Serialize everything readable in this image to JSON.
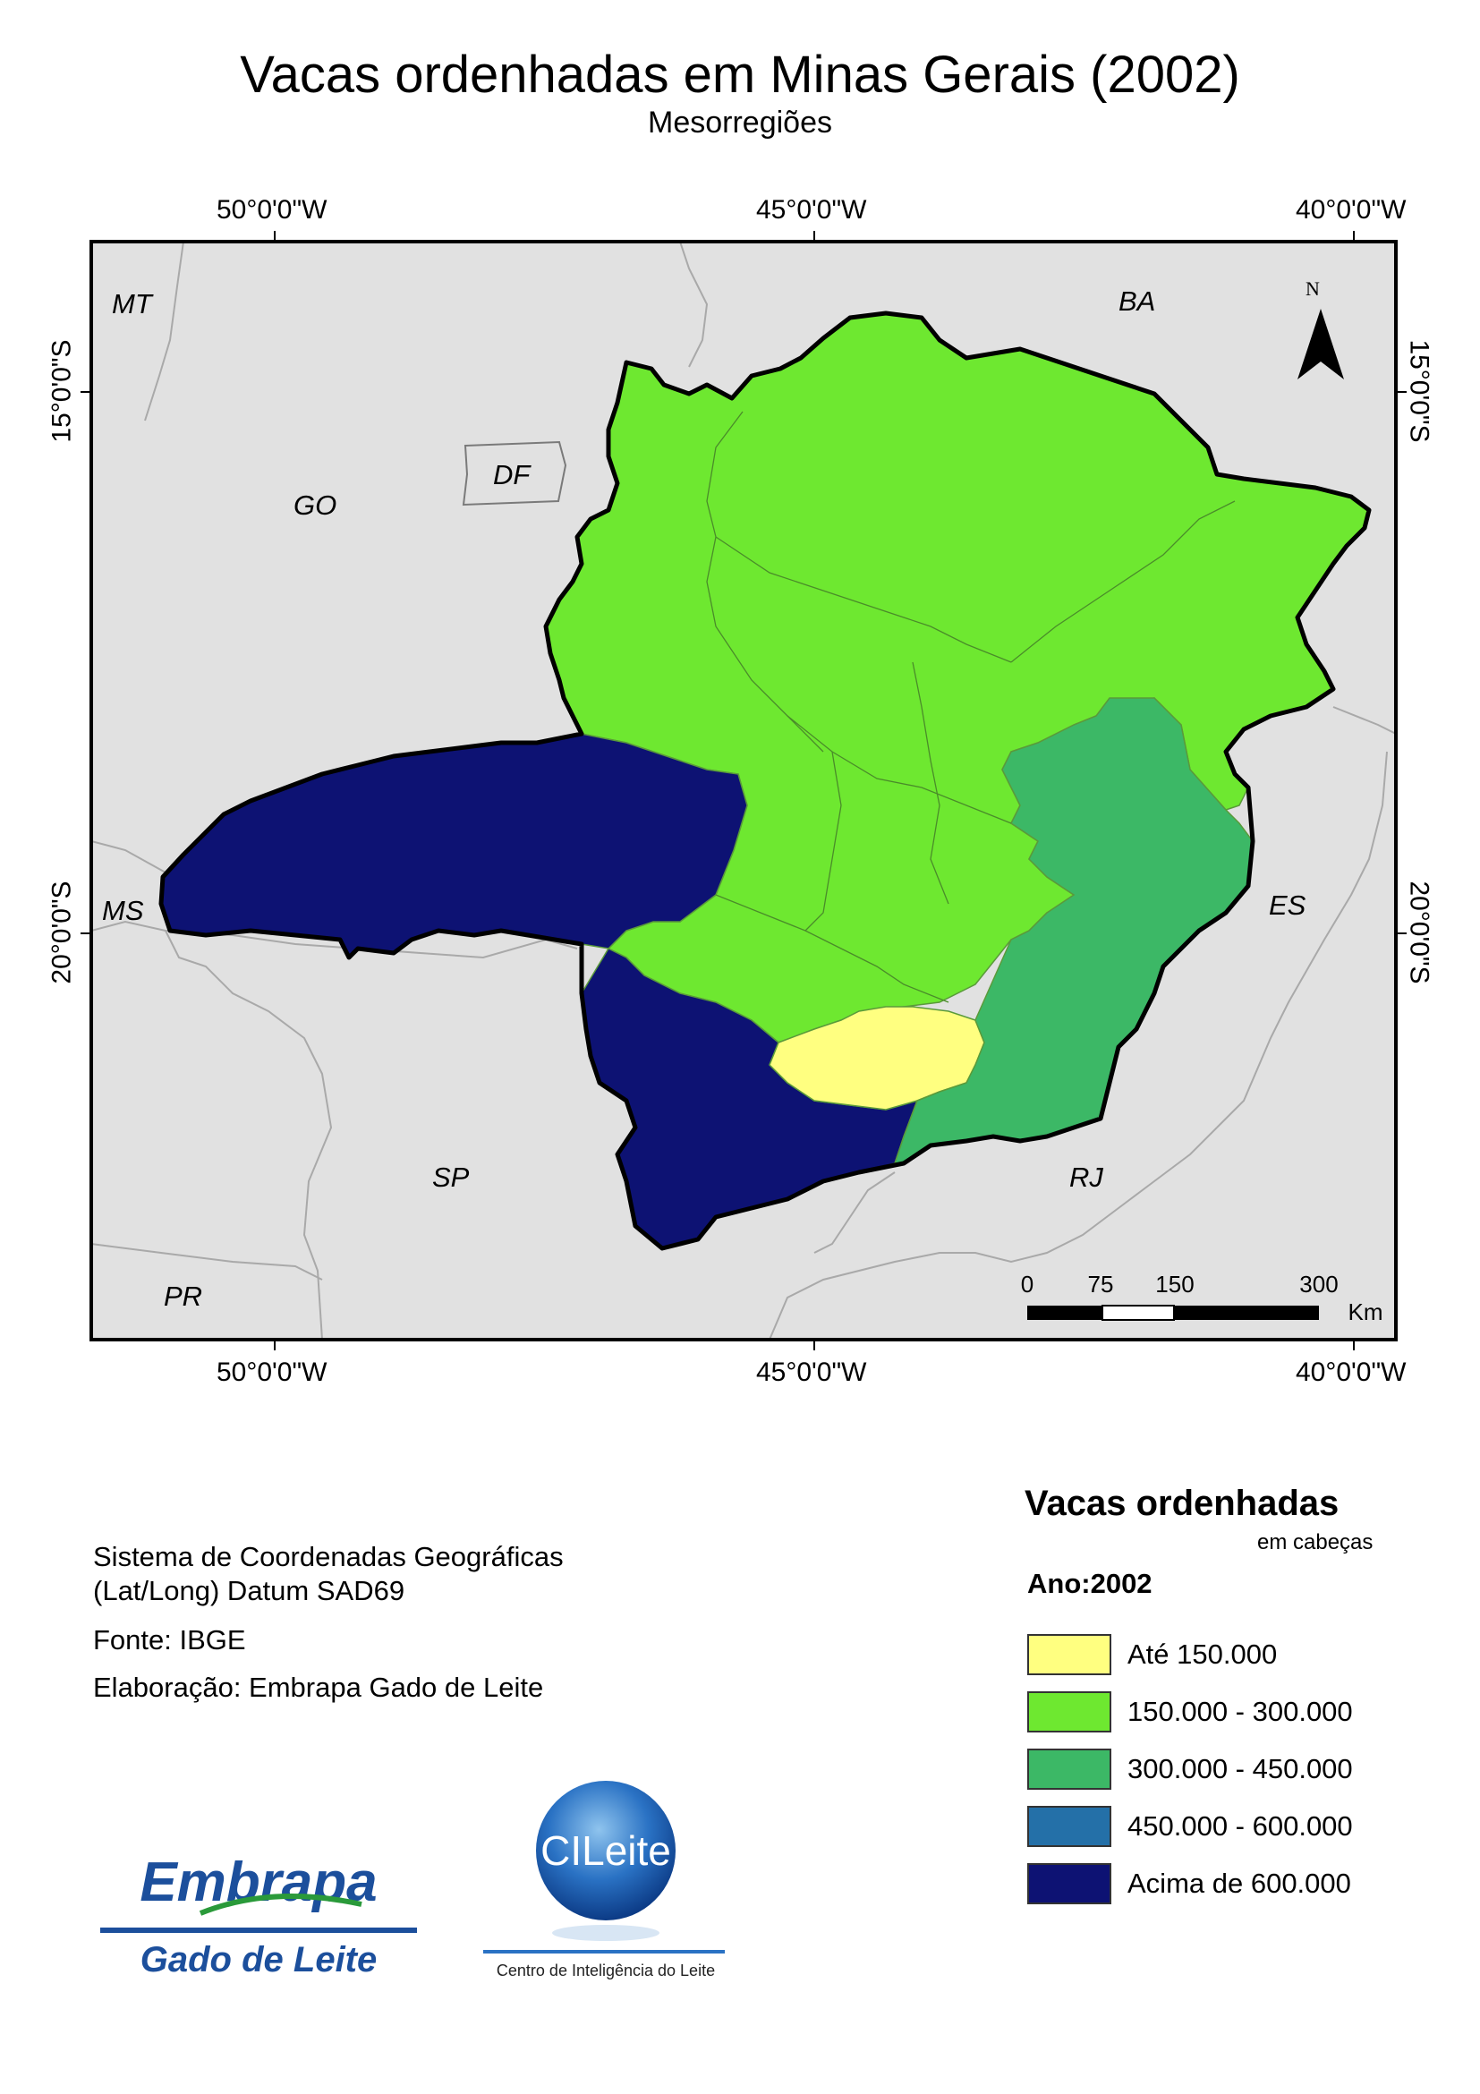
{
  "title": "Vacas ordenhadas em Minas Gerais (2002)",
  "subtitle": "Mesorregiões",
  "graticule": {
    "lon_top": [
      "50°0'0\"W",
      "45°0'0\"W",
      "40°0'0\"W"
    ],
    "lon_bottom": [
      "50°0'0\"W",
      "45°0'0\"W",
      "40°0'0\"W"
    ],
    "lat_left": [
      "15°0'0\"S",
      "20°0'0\"S"
    ],
    "lat_right": [
      "15°0'0\"S",
      "20°0'0\"S"
    ]
  },
  "states": {
    "mt": "MT",
    "ba": "BA",
    "go": "GO",
    "df": "DF",
    "ms": "MS",
    "es": "ES",
    "sp": "SP",
    "rj": "RJ",
    "pr": "PR"
  },
  "north_arrow": "N",
  "scale_bar": {
    "ticks": [
      "0",
      "75",
      "150",
      "300"
    ],
    "unit": "Km"
  },
  "info": {
    "line1": "Sistema de Coordenadas Geográficas",
    "line2": "(Lat/Long) Datum SAD69",
    "source": "Fonte: IBGE",
    "author": "Elaboração: Embrapa Gado de Leite"
  },
  "legend": {
    "title": "Vacas ordenhadas",
    "unit": "em cabeças",
    "year": "Ano:2002",
    "items": [
      {
        "label": "Até 150.000",
        "color": "#ffff80"
      },
      {
        "label": "150.000 - 300.000",
        "color": "#6ee830"
      },
      {
        "label": "300.000 - 450.000",
        "color": "#3cb866"
      },
      {
        "label": "450.000 - 600.000",
        "color": "#2470a8"
      },
      {
        "label": "Acima de 600.000",
        "color": "#0d1273"
      }
    ]
  },
  "logos": {
    "embrapa_name": "Embrapa",
    "embrapa_unit": "Gado de Leite",
    "cileite_name": "CILeite",
    "cileite_caption": "Centro de Inteligência do Leite"
  },
  "colors": {
    "background": "#e1e1e1",
    "state_border": "#a9a9a9",
    "mg_outline": "#000000"
  }
}
